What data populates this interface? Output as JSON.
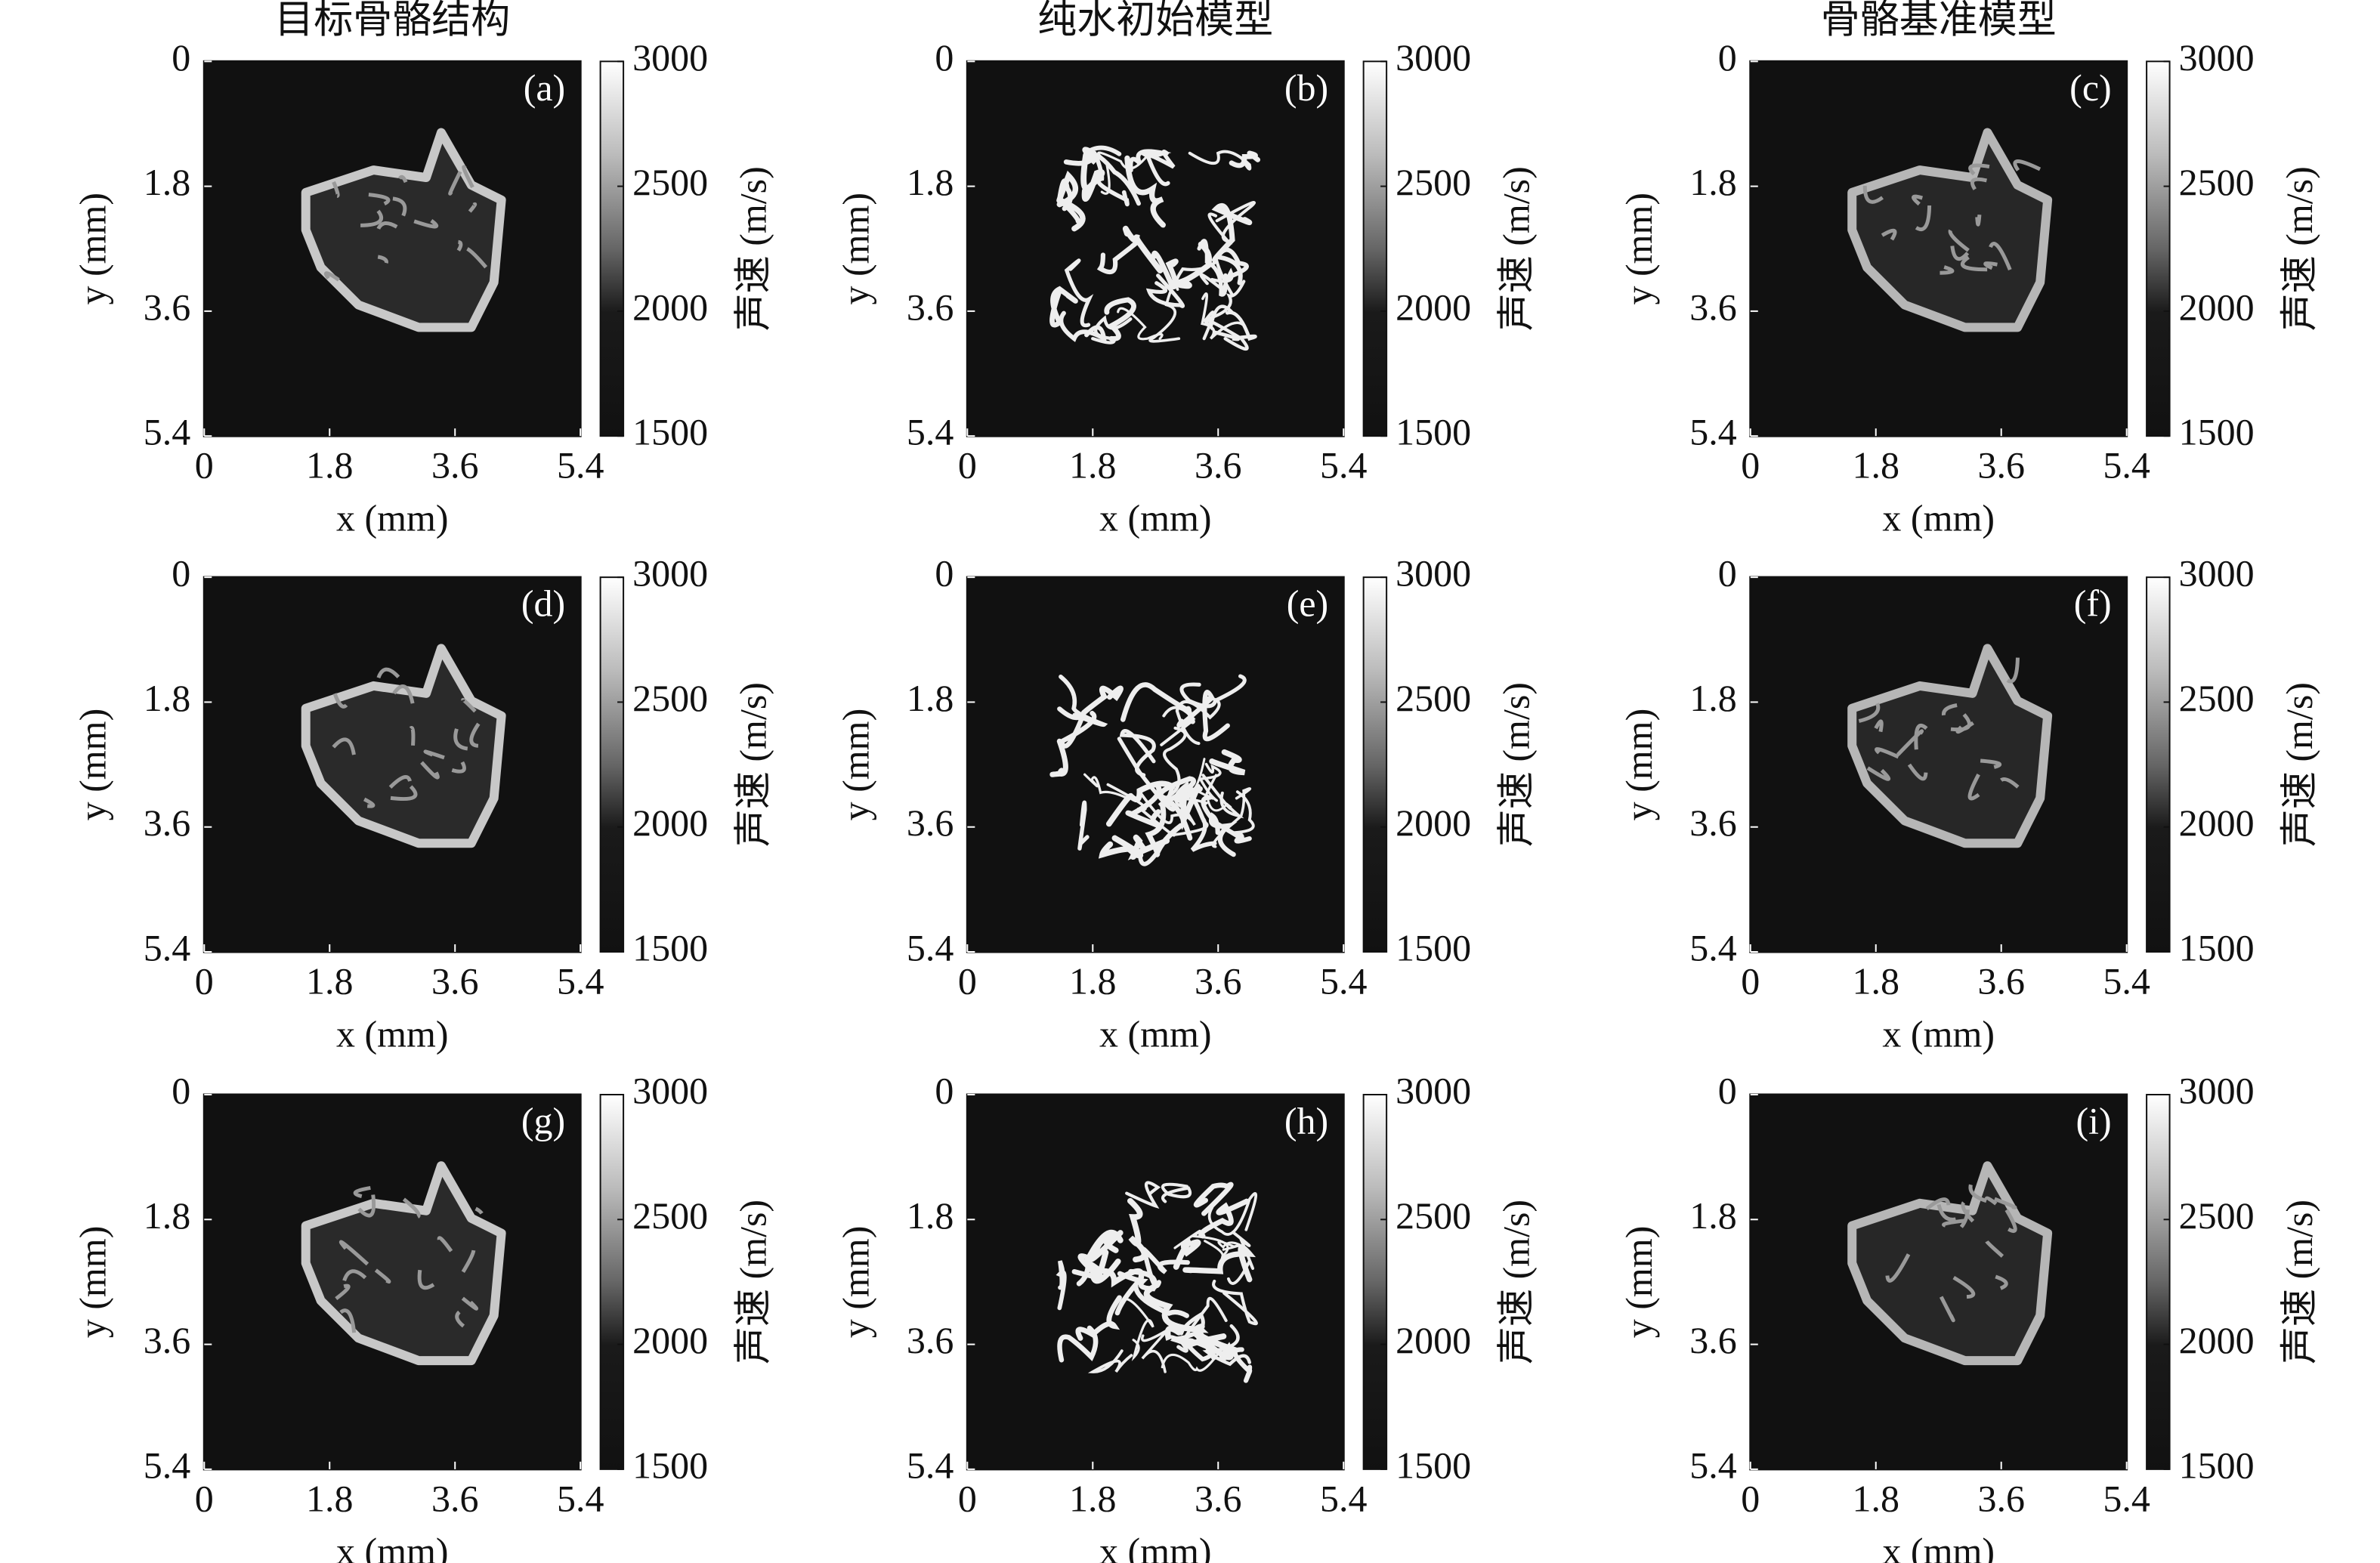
{
  "chart_data": [
    {
      "type": "heatmap",
      "title": "目标骨骼结构",
      "label": "(a)",
      "xlabel": "x (mm)",
      "ylabel": "y (mm)",
      "xlim": [
        0,
        5.4
      ],
      "ylim": [
        0,
        5.4
      ],
      "xticks": [
        0,
        1.8,
        3.6,
        5.4
      ],
      "yticks": [
        0,
        1.8,
        3.6,
        5.4
      ],
      "clim": [
        1500,
        3000
      ],
      "cticks": [
        1500,
        2000,
        2500,
        3000
      ],
      "clabel": "声速 (m/s)"
    },
    {
      "type": "heatmap",
      "title": "纯水初始模型",
      "label": "(b)",
      "xlabel": "x (mm)",
      "ylabel": "y (mm)",
      "xlim": [
        0,
        5.4
      ],
      "ylim": [
        0,
        5.4
      ],
      "xticks": [
        0,
        1.8,
        3.6,
        5.4
      ],
      "yticks": [
        0,
        1.8,
        3.6,
        5.4
      ],
      "clim": [
        1500,
        3000
      ],
      "cticks": [
        1500,
        2000,
        2500,
        3000
      ],
      "clabel": "声速 (m/s)"
    },
    {
      "type": "heatmap",
      "title": "骨骼基准模型",
      "label": "(c)",
      "xlabel": "x (mm)",
      "ylabel": "y (mm)",
      "xlim": [
        0,
        5.4
      ],
      "ylim": [
        0,
        5.4
      ],
      "xticks": [
        0,
        1.8,
        3.6,
        5.4
      ],
      "yticks": [
        0,
        1.8,
        3.6,
        5.4
      ],
      "clim": [
        1500,
        3000
      ],
      "cticks": [
        1500,
        2000,
        2500,
        3000
      ],
      "clabel": "声速 (m/s)"
    },
    {
      "type": "heatmap",
      "label": "(d)",
      "xlabel": "x (mm)",
      "ylabel": "y (mm)",
      "xlim": [
        0,
        5.4
      ],
      "ylim": [
        0,
        5.4
      ],
      "xticks": [
        0,
        1.8,
        3.6,
        5.4
      ],
      "yticks": [
        0,
        1.8,
        3.6,
        5.4
      ],
      "clim": [
        1500,
        3000
      ],
      "cticks": [
        1500,
        2000,
        2500,
        3000
      ],
      "clabel": "声速 (m/s)"
    },
    {
      "type": "heatmap",
      "label": "(e)",
      "xlabel": "x (mm)",
      "ylabel": "y (mm)",
      "xlim": [
        0,
        5.4
      ],
      "ylim": [
        0,
        5.4
      ],
      "xticks": [
        0,
        1.8,
        3.6,
        5.4
      ],
      "yticks": [
        0,
        1.8,
        3.6,
        5.4
      ],
      "clim": [
        1500,
        3000
      ],
      "cticks": [
        1500,
        2000,
        2500,
        3000
      ],
      "clabel": "声速 (m/s)"
    },
    {
      "type": "heatmap",
      "label": "(f)",
      "xlabel": "x (mm)",
      "ylabel": "y (mm)",
      "xlim": [
        0,
        5.4
      ],
      "ylim": [
        0,
        5.4
      ],
      "xticks": [
        0,
        1.8,
        3.6,
        5.4
      ],
      "yticks": [
        0,
        1.8,
        3.6,
        5.4
      ],
      "clim": [
        1500,
        3000
      ],
      "cticks": [
        1500,
        2000,
        2500,
        3000
      ],
      "clabel": "声速 (m/s)"
    },
    {
      "type": "heatmap",
      "label": "(g)",
      "xlabel": "x (mm)",
      "ylabel": "y (mm)",
      "xlim": [
        0,
        5.4
      ],
      "ylim": [
        0,
        5.4
      ],
      "xticks": [
        0,
        1.8,
        3.6,
        5.4
      ],
      "yticks": [
        0,
        1.8,
        3.6,
        5.4
      ],
      "clim": [
        1500,
        3000
      ],
      "cticks": [
        1500,
        2000,
        2500,
        3000
      ],
      "clabel": "声速 (m/s)"
    },
    {
      "type": "heatmap",
      "label": "(h)",
      "xlabel": "x (mm)",
      "ylabel": "y (mm)",
      "xlim": [
        0,
        5.4
      ],
      "ylim": [
        0,
        5.4
      ],
      "xticks": [
        0,
        1.8,
        3.6,
        5.4
      ],
      "yticks": [
        0,
        1.8,
        3.6,
        5.4
      ],
      "clim": [
        1500,
        3000
      ],
      "cticks": [
        1500,
        2000,
        2500,
        3000
      ],
      "clabel": "声速 (m/s)"
    },
    {
      "type": "heatmap",
      "label": "(i)",
      "xlabel": "x (mm)",
      "ylabel": "y (mm)",
      "xlim": [
        0,
        5.4
      ],
      "ylim": [
        0,
        5.4
      ],
      "xticks": [
        0,
        1.8,
        3.6,
        5.4
      ],
      "yticks": [
        0,
        1.8,
        3.6,
        5.4
      ],
      "clim": [
        1500,
        3000
      ],
      "cticks": [
        1500,
        2000,
        2500,
        3000
      ],
      "clabel": "声速 (m/s)"
    }
  ]
}
